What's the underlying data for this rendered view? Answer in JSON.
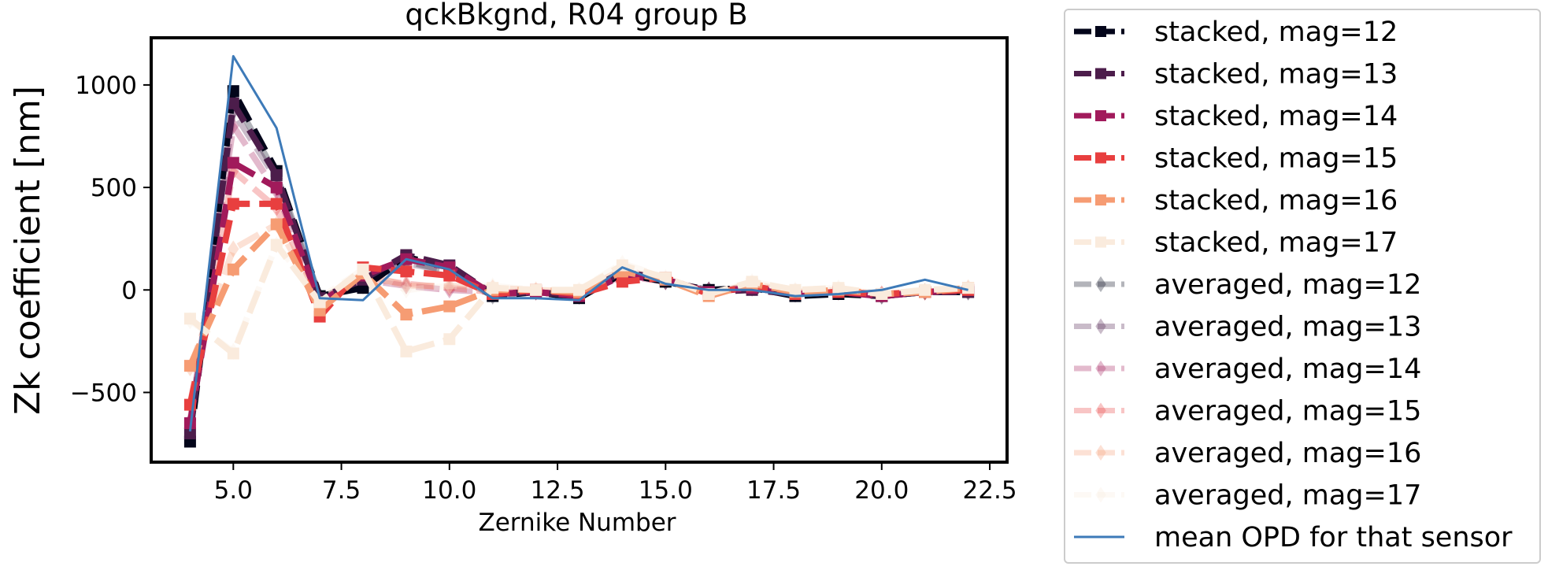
{
  "chart_data": {
    "type": "line",
    "title": "qckBkgnd, R04 group B",
    "xlabel": "Zernike Number",
    "ylabel": "Zk coefficient [nm]",
    "xlim": [
      3.1,
      22.9
    ],
    "ylim": [
      -840,
      1230
    ],
    "xticks": [
      5.0,
      7.5,
      10.0,
      12.5,
      15.0,
      17.5,
      20.0,
      22.5
    ],
    "xtick_labels": [
      "5.0",
      "7.5",
      "10.0",
      "12.5",
      "15.0",
      "17.5",
      "20.0",
      "22.5"
    ],
    "yticks": [
      -500,
      0,
      500,
      1000
    ],
    "ytick_labels": [
      "−500",
      "0",
      "500",
      "1000"
    ],
    "grid": false,
    "legend_position": "outside right",
    "x": [
      4,
      5,
      6,
      7,
      8,
      9,
      10,
      11,
      12,
      13,
      14,
      15,
      16,
      17,
      18,
      19,
      20,
      21,
      22
    ],
    "series": [
      {
        "name": "stacked, mag=12",
        "color": "#03051a",
        "opacity": 1.0,
        "marker": "square",
        "dashed": true,
        "values": [
          -740,
          970,
          580,
          -30,
          10,
          160,
          110,
          -30,
          -10,
          -40,
          80,
          40,
          0,
          10,
          -30,
          -20,
          -30,
          -10,
          -10
        ]
      },
      {
        "name": "stacked, mag=13",
        "color": "#4c1d4b",
        "opacity": 1.0,
        "marker": "square",
        "dashed": true,
        "values": [
          -700,
          910,
          560,
          -40,
          50,
          170,
          120,
          -20,
          -10,
          -30,
          90,
          50,
          -10,
          0,
          -20,
          -10,
          -30,
          -10,
          -10
        ]
      },
      {
        "name": "stacked, mag=14",
        "color": "#a11a5b",
        "opacity": 1.0,
        "marker": "square",
        "dashed": true,
        "values": [
          -650,
          620,
          500,
          -60,
          70,
          150,
          110,
          -20,
          -10,
          -30,
          70,
          50,
          -10,
          10,
          -20,
          -10,
          -30,
          -10,
          0
        ]
      },
      {
        "name": "stacked, mag=15",
        "color": "#e83f3f",
        "opacity": 1.0,
        "marker": "square",
        "dashed": true,
        "values": [
          -560,
          420,
          420,
          -130,
          110,
          90,
          70,
          -20,
          0,
          -20,
          40,
          60,
          -20,
          20,
          -20,
          -10,
          -20,
          -10,
          0
        ]
      },
      {
        "name": "stacked, mag=16",
        "color": "#f69c73",
        "opacity": 1.0,
        "marker": "square",
        "dashed": true,
        "values": [
          -370,
          100,
          320,
          -100,
          80,
          -120,
          -80,
          0,
          0,
          -10,
          90,
          50,
          -30,
          30,
          -10,
          0,
          -20,
          -10,
          10
        ]
      },
      {
        "name": "stacked, mag=17",
        "color": "#faebdd",
        "opacity": 1.0,
        "marker": "square",
        "dashed": true,
        "values": [
          -140,
          -310,
          220,
          -60,
          100,
          -300,
          -240,
          10,
          0,
          0,
          120,
          60,
          -20,
          40,
          0,
          10,
          -20,
          0,
          10
        ]
      },
      {
        "name": "averaged, mag=12",
        "color": "#03051a",
        "opacity": 0.3,
        "marker": "diamond",
        "dashed": true,
        "values": [
          -700,
          940,
          560,
          -30,
          20,
          140,
          90,
          -30,
          -10,
          -30,
          80,
          40,
          0,
          10,
          -20,
          -10,
          -30,
          -10,
          -10
        ]
      },
      {
        "name": "averaged, mag=13",
        "color": "#4c1d4b",
        "opacity": 0.3,
        "marker": "diamond",
        "dashed": true,
        "values": [
          -680,
          870,
          540,
          -40,
          40,
          130,
          90,
          -20,
          -10,
          -30,
          80,
          40,
          0,
          10,
          -20,
          -10,
          -30,
          -10,
          -10
        ]
      },
      {
        "name": "averaged, mag=14",
        "color": "#a11a5b",
        "opacity": 0.3,
        "marker": "diamond",
        "dashed": true,
        "values": [
          -640,
          800,
          480,
          -50,
          50,
          20,
          0,
          -10,
          -10,
          -30,
          70,
          40,
          0,
          10,
          -20,
          -10,
          -20,
          -10,
          0
        ]
      },
      {
        "name": "averaged, mag=15",
        "color": "#e83f3f",
        "opacity": 0.3,
        "marker": "diamond",
        "dashed": true,
        "values": [
          -560,
          580,
          400,
          -60,
          60,
          30,
          10,
          -10,
          -10,
          -20,
          80,
          50,
          -10,
          20,
          -10,
          -10,
          -20,
          -10,
          0
        ]
      },
      {
        "name": "averaged, mag=16",
        "color": "#f69c73",
        "opacity": 0.3,
        "marker": "diamond",
        "dashed": true,
        "values": [
          -380,
          200,
          320,
          -50,
          80,
          20,
          20,
          10,
          0,
          -10,
          100,
          50,
          -20,
          30,
          -10,
          0,
          -20,
          -10,
          10
        ]
      },
      {
        "name": "averaged, mag=17",
        "color": "#faebdd",
        "opacity": 0.3,
        "marker": "diamond",
        "dashed": true,
        "values": [
          -150,
          -300,
          220,
          -40,
          100,
          0,
          20,
          20,
          0,
          0,
          130,
          60,
          -20,
          40,
          0,
          10,
          -20,
          0,
          10
        ]
      },
      {
        "name": "mean OPD for that sensor",
        "color": "#3d7ab8",
        "opacity": 1.0,
        "marker": "none",
        "dashed": false,
        "values": [
          -690,
          1140,
          790,
          -40,
          -50,
          150,
          100,
          -40,
          -40,
          -50,
          110,
          30,
          0,
          0,
          -30,
          -20,
          0,
          50,
          0
        ]
      }
    ]
  }
}
